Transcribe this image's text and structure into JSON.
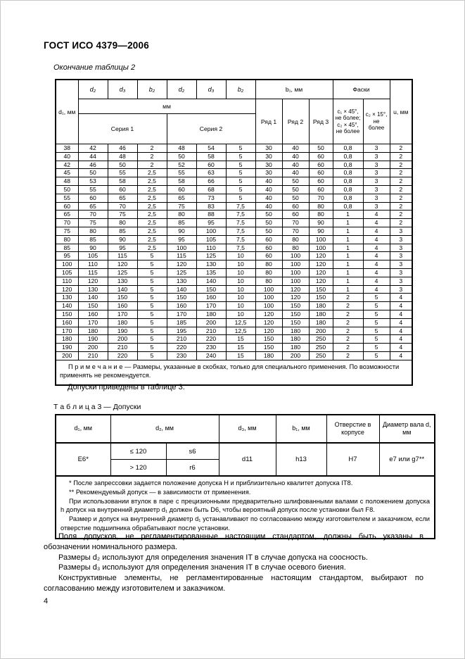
{
  "page": {
    "title": "ГОСТ ИСО 4379—2006",
    "table2_caption": "Окончание таблицы 2",
    "between_text": "Допуски приведены в таблице 3.",
    "page_number": "4"
  },
  "table2": {
    "header": {
      "d1": "d₁, мм",
      "sub_cols": [
        "d₂",
        "d₃",
        "b₂",
        "d₂",
        "d₃",
        "b₂"
      ],
      "mm": "мм",
      "seria1": "Серия 1",
      "seria2": "Серия 2",
      "b1": "b₁, мм",
      "ryad": [
        "Ряд 1",
        "Ряд 2",
        "Ряд 3"
      ],
      "faski": "Фаски",
      "chamfer1": "c₁ × 45°, не более; c₂ × 45°, не более",
      "chamfer2": "c₂ × 15°, не более",
      "u": "u, мм"
    },
    "rows": [
      [
        "38",
        "42",
        "46",
        "2",
        "48",
        "54",
        "5",
        "30",
        "40",
        "50",
        "0,8",
        "3",
        "2"
      ],
      [
        "40",
        "44",
        "48",
        "2",
        "50",
        "58",
        "5",
        "30",
        "40",
        "60",
        "0,8",
        "3",
        "2"
      ],
      [
        "42",
        "46",
        "50",
        "2",
        "52",
        "60",
        "5",
        "30",
        "40",
        "60",
        "0,8",
        "3",
        "2"
      ],
      [
        "45",
        "50",
        "55",
        "2,5",
        "55",
        "63",
        "5",
        "30",
        "40",
        "60",
        "0,8",
        "3",
        "2"
      ],
      [
        "48",
        "53",
        "58",
        "2,5",
        "58",
        "66",
        "5",
        "40",
        "50",
        "60",
        "0,8",
        "3",
        "2"
      ],
      [
        "50",
        "55",
        "60",
        "2,5",
        "60",
        "68",
        "5",
        "40",
        "50",
        "60",
        "0,8",
        "3",
        "2"
      ],
      [
        "55",
        "60",
        "65",
        "2,5",
        "65",
        "73",
        "5",
        "40",
        "50",
        "70",
        "0,8",
        "3",
        "2"
      ],
      [
        "60",
        "65",
        "70",
        "2,5",
        "75",
        "83",
        "7,5",
        "40",
        "60",
        "80",
        "0,8",
        "3",
        "2"
      ],
      [
        "65",
        "70",
        "75",
        "2,5",
        "80",
        "88",
        "7,5",
        "50",
        "60",
        "80",
        "1",
        "4",
        "2"
      ],
      [
        "70",
        "75",
        "80",
        "2,5",
        "85",
        "95",
        "7,5",
        "50",
        "70",
        "90",
        "1",
        "4",
        "2"
      ],
      [
        "75",
        "80",
        "85",
        "2,5",
        "90",
        "100",
        "7,5",
        "50",
        "70",
        "90",
        "1",
        "4",
        "3"
      ],
      [
        "80",
        "85",
        "90",
        "2,5",
        "95",
        "105",
        "7,5",
        "60",
        "80",
        "100",
        "1",
        "4",
        "3"
      ],
      [
        "85",
        "90",
        "95",
        "2,5",
        "100",
        "110",
        "7,5",
        "60",
        "80",
        "100",
        "1",
        "4",
        "3"
      ],
      [
        "95",
        "105",
        "115",
        "5",
        "115",
        "125",
        "10",
        "60",
        "100",
        "120",
        "1",
        "4",
        "3"
      ],
      [
        "100",
        "110",
        "120",
        "5",
        "120",
        "130",
        "10",
        "80",
        "100",
        "120",
        "1",
        "4",
        "3"
      ],
      [
        "105",
        "115",
        "125",
        "5",
        "125",
        "135",
        "10",
        "80",
        "100",
        "120",
        "1",
        "4",
        "3"
      ],
      [
        "110",
        "120",
        "130",
        "5",
        "130",
        "140",
        "10",
        "80",
        "100",
        "120",
        "1",
        "4",
        "3"
      ],
      [
        "120",
        "130",
        "140",
        "5",
        "140",
        "150",
        "10",
        "100",
        "120",
        "150",
        "1",
        "4",
        "3"
      ],
      [
        "130",
        "140",
        "150",
        "5",
        "150",
        "160",
        "10",
        "100",
        "120",
        "150",
        "2",
        "5",
        "4"
      ],
      [
        "140",
        "150",
        "160",
        "5",
        "160",
        "170",
        "10",
        "100",
        "150",
        "180",
        "2",
        "5",
        "4"
      ],
      [
        "150",
        "160",
        "170",
        "5",
        "170",
        "180",
        "10",
        "120",
        "150",
        "180",
        "2",
        "5",
        "4"
      ],
      [
        "160",
        "170",
        "180",
        "5",
        "185",
        "200",
        "12,5",
        "120",
        "150",
        "180",
        "2",
        "5",
        "4"
      ],
      [
        "170",
        "180",
        "190",
        "5",
        "195",
        "210",
        "12,5",
        "120",
        "180",
        "200",
        "2",
        "5",
        "4"
      ],
      [
        "180",
        "190",
        "200",
        "5",
        "210",
        "220",
        "15",
        "150",
        "180",
        "250",
        "2",
        "5",
        "4"
      ],
      [
        "190",
        "200",
        "210",
        "5",
        "220",
        "230",
        "15",
        "150",
        "180",
        "250",
        "2",
        "5",
        "4"
      ],
      [
        "200",
        "210",
        "220",
        "5",
        "230",
        "240",
        "15",
        "180",
        "200",
        "250",
        "2",
        "5",
        "4"
      ]
    ],
    "note": "П р и м е ч а н и е — Размеры, указанные в скобках, только для специального применения. По возможности применять не рекомендуется."
  },
  "table3": {
    "caption": "Т а б л и ц а  3 — Допуски",
    "headers": {
      "d1": "d₁, мм",
      "d2": "d₂, мм",
      "d3": "d₃, мм",
      "b1": "b₁, мм",
      "housing": "Отверстие в корпусе",
      "shaft": "Диаметр вала d, мм"
    },
    "row": {
      "d1": "E6*",
      "d2_cond1": "≤ 120",
      "d2_tol1": "s6",
      "d2_cond2": "> 120",
      "d2_tol2": "r6",
      "d3": "d11",
      "b1": "h13",
      "housing": "H7",
      "shaft": "e7 или g7**"
    },
    "footnotes": [
      "* После запрессовки задается положение допуска Н и приблизительно квалитет допуска IT8.",
      "** Рекомендуемый допуск — в зависимости от применения.",
      "При использовании втулок в паре с прецизионными предварительно шлифованными валами с положением допуска h допуск на внутренний диаметр d₁ должен быть D6, чтобы вероятный допуск после установки был F8.",
      "Размер и допуск на внутренний диаметр d₁ устанавливают по согласованию между изготовителем и заказчиком, если отверстие подшипника обрабатывают после установки."
    ]
  },
  "paragraphs": [
    "Поля допусков, не регламентированные настоящим стандартом, должны быть указаны в обозначении номинального размера.",
    "Размеры d₂ используют для определения значения IT в случае допуска на соосность.",
    "Размеры d₃ используют для определения значения IT в случае осевого биения.",
    "Конструктивные элементы, не регламентированные настоящим стандартом, выбирают по согласованию между изготовителем и заказчиком."
  ]
}
